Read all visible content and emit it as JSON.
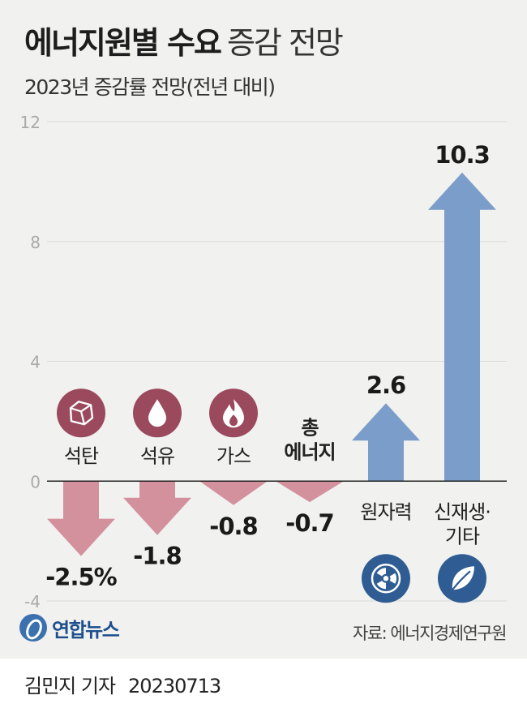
{
  "header": {
    "title_bold": "에너지원별 수요",
    "title_light": "증감 전망",
    "subtitle": "2023년 증감률 전망(전년 대비)"
  },
  "chart_data": {
    "type": "bar",
    "categories": [
      "석탄",
      "석유",
      "가스",
      "총 에너지",
      "원자력",
      "신재생·기타"
    ],
    "values": [
      -2.5,
      -1.8,
      -0.8,
      -0.7,
      2.6,
      10.3
    ],
    "value_labels": [
      "-2.5%",
      "-1.8",
      "-0.8",
      "-0.7",
      "2.6",
      "10.3"
    ],
    "ylim": [
      -4,
      12
    ],
    "yticks": [
      -4,
      0,
      4,
      8,
      12
    ],
    "category_label_lines": [
      [
        "석탄"
      ],
      [
        "석유"
      ],
      [
        "가스"
      ],
      [
        "총",
        "에너지"
      ],
      [
        "원자력"
      ],
      [
        "신재생·",
        "기타"
      ]
    ],
    "category_label_bold": [
      false,
      false,
      false,
      true,
      false,
      false
    ],
    "icons": [
      "coal-icon",
      "oil-drop-icon",
      "flame-icon",
      null,
      "radiation-icon",
      "leaf-icon"
    ],
    "grid": true,
    "colors": {
      "negative": "#d2919d",
      "positive": "#7b9dca",
      "icon_neg": "#9b4a5e",
      "icon_pos": "#2f5d93",
      "grid": "#d9d9d9",
      "tick": "#aaaaaa"
    }
  },
  "source": "자료: 에너지경제연구원",
  "logo": {
    "text": "연합뉴스",
    "icon": "yonhap-logo-icon"
  },
  "footer": {
    "reporter": "김민지 기자",
    "date": "20230713"
  }
}
